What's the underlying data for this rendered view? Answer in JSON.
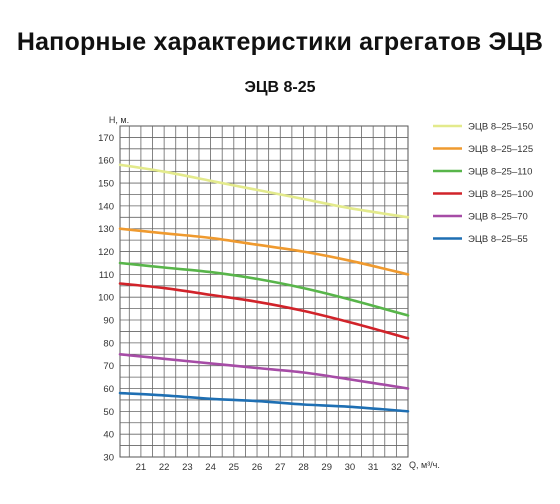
{
  "page": {
    "title": "Напорные характеристики агрегатов ЭЦВ",
    "subtitle": "ЭЦВ 8-25"
  },
  "chart_data": {
    "type": "line",
    "title": "ЭЦВ 8-25",
    "xlabel": "Q, м³/ч.",
    "ylabel": "H, м.",
    "xlim": [
      20.1,
      32.5
    ],
    "ylim": [
      30,
      175
    ],
    "x_ticks": [
      21,
      22,
      23,
      24,
      25,
      26,
      27,
      28,
      29,
      30,
      31,
      32
    ],
    "y_ticks": [
      30,
      40,
      50,
      60,
      70,
      80,
      90,
      100,
      110,
      120,
      130,
      140,
      150,
      160,
      170
    ],
    "grid": true,
    "legend_position": "right",
    "x": [
      20.1,
      22,
      24,
      26,
      28,
      30,
      32.5
    ],
    "series": [
      {
        "name": "ЭЦВ 8–25–150",
        "color": "#e3ea8c",
        "values": [
          158,
          155,
          151,
          147,
          143,
          139,
          135
        ]
      },
      {
        "name": "ЭЦВ 8–25–125",
        "color": "#ef9a2f",
        "values": [
          130,
          128,
          126,
          123,
          120,
          116,
          110
        ]
      },
      {
        "name": "ЭЦВ 8–25–110",
        "color": "#58b54a",
        "values": [
          115,
          113,
          111,
          108,
          104,
          99,
          92
        ]
      },
      {
        "name": "ЭЦВ 8–25–100",
        "color": "#d1232a",
        "values": [
          106,
          104,
          101,
          98,
          94,
          89,
          82
        ]
      },
      {
        "name": "ЭЦВ 8–25–70",
        "color": "#a64ca6",
        "values": [
          75,
          73,
          71,
          69,
          67,
          64,
          60
        ]
      },
      {
        "name": "ЭЦВ 8–25–55",
        "color": "#1e6fb3",
        "values": [
          58,
          57,
          55.5,
          54.5,
          53,
          52,
          50
        ]
      }
    ]
  }
}
